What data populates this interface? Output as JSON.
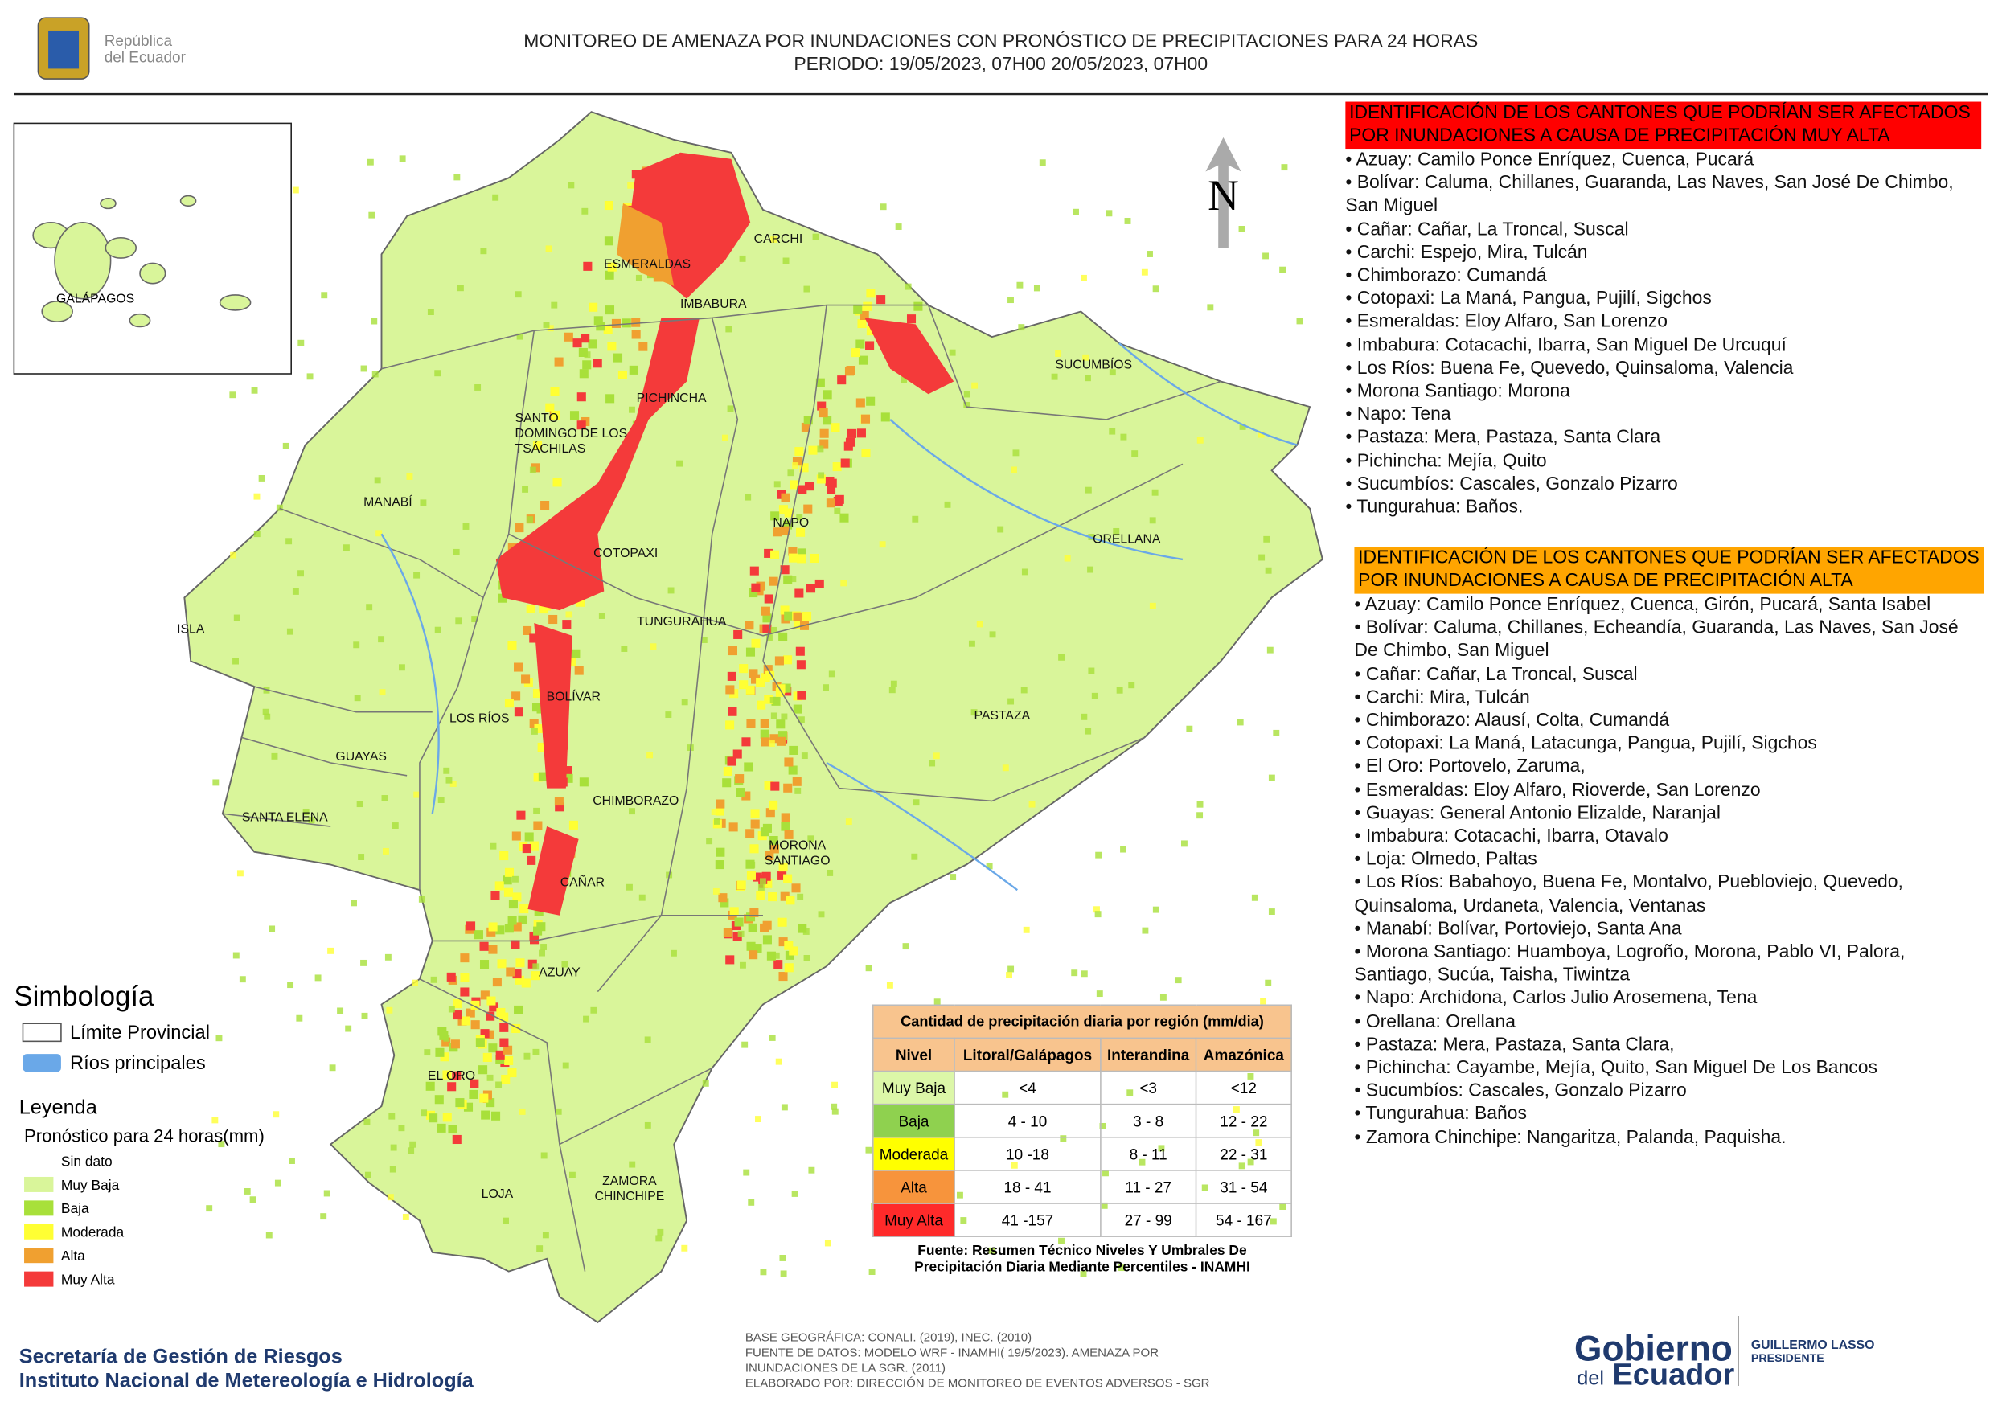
{
  "header": {
    "logo_text": [
      "República",
      "del Ecuador"
    ],
    "title": [
      "MONITOREO DE AMENAZA POR INUNDACIONES  CON PRONÓSTICO DE  PRECIPITACIONES PARA 24 HORAS",
      "PERIODO: 19/05/2023, 07H00 20/05/2023, 07H00"
    ]
  },
  "map": {
    "north": "N",
    "inset_label": "GALÁPAGOS",
    "labels": [
      [
        "CARCHI"
      ],
      [
        "ESMERALDAS"
      ],
      [
        "IMBABURA"
      ],
      [
        "SUCUMBÍOS"
      ],
      [
        "PICHINCHA"
      ],
      [
        "SANTO",
        "DOMINGO DE LOS",
        "TSÁCHILAS"
      ],
      [
        "MANABÍ"
      ],
      [
        "NAPO"
      ],
      [
        "ORELLANA"
      ],
      [
        "COTOPAXI"
      ],
      [
        "ISLA"
      ],
      [
        "TUNGURAHUA"
      ],
      [
        "BOLÍVAR"
      ],
      [
        "LOS RÍOS"
      ],
      [
        "PASTAZA"
      ],
      [
        "GUAYAS"
      ],
      [
        "CHIMBORAZO"
      ],
      [
        "SANTA ELENA"
      ],
      [
        "MORONA",
        "SANTIAGO"
      ],
      [
        "CAÑAR"
      ],
      [
        "AZUAY"
      ],
      [
        "EL ORO"
      ],
      [
        "ZAMORA",
        "CHINCHIPE"
      ],
      [
        "LOJA"
      ]
    ]
  },
  "very_high": {
    "heading": "IDENTIFICACIÓN DE LOS CANTONES QUE PODRÍAN SER AFECTADOS POR INUNDACIONES  A CAUSA DE PRECIPITACIÓN MUY ALTA",
    "items": [
      "• Azuay: Camilo Ponce Enríquez, Cuenca, Pucará",
      "• Bolívar: Caluma, Chillanes, Guaranda, Las Naves, San José De Chimbo, San Miguel",
      "• Cañar: Cañar, La Troncal, Suscal",
      "• Carchi: Espejo, Mira, Tulcán",
      "• Chimborazo: Cumandá",
      "• Cotopaxi: La Maná, Pangua, Pujilí, Sigchos",
      "• Esmeraldas: Eloy Alfaro, San Lorenzo",
      "• Imbabura: Cotacachi, Ibarra, San Miguel De Urcuquí",
      "• Los Ríos: Buena Fe, Quevedo, Quinsaloma, Valencia",
      "• Morona Santiago: Morona",
      "• Napo: Tena",
      "• Pastaza: Mera, Pastaza, Santa Clara",
      "• Pichincha: Mejía, Quito",
      "• Sucumbíos: Cascales, Gonzalo Pizarro",
      "• Tungurahua: Baños."
    ]
  },
  "high": {
    "heading": "IDENTIFICACIÓN DE LOS CANTONES QUE  PODRÍAN SER AFECTADOS POR INUNDACIONES  A CAUSA DE PRECIPITACIÓN ALTA",
    "items": [
      "• Azuay: Camilo Ponce Enríquez, Cuenca, Girón, Pucará, Santa Isabel",
      "• Bolívar: Caluma, Chillanes, Echeandía, Guaranda, Las Naves, San José De Chimbo, San Miguel",
      "• Cañar: Cañar, La Troncal, Suscal",
      "• Carchi: Mira, Tulcán",
      "• Chimborazo: Alausí, Colta, Cumandá",
      "• Cotopaxi: La Maná, Latacunga, Pangua, Pujilí, Sigchos",
      "• El Oro: Portovelo, Zaruma,",
      "• Esmeraldas: Eloy Alfaro, Rioverde, San Lorenzo",
      "• Guayas: General Antonio Elizalde, Naranjal",
      "• Imbabura: Cotacachi, Ibarra, Otavalo",
      "• Loja: Olmedo, Paltas",
      "• Los Ríos: Babahoyo, Buena Fe, Montalvo, Puebloviejo, Quevedo, Quinsaloma, Urdaneta, Valencia, Ventanas",
      "• Manabí: Bolívar, Portoviejo, Santa Ana",
      "• Morona Santiago: Huamboya, Logroño, Morona, Pablo VI, Palora, Santiago, Sucúa, Taisha, Tiwintza",
      "• Napo: Archidona, Carlos Julio Arosemena, Tena",
      "• Orellana: Orellana",
      "• Pastaza: Mera, Pastaza, Santa Clara,",
      "• Pichincha: Cayambe, Mejía, Quito, San Miguel De Los Bancos",
      "• Sucumbíos: Cascales, Gonzalo Pizarro",
      "• Tungurahua: Baños",
      "• Zamora Chinchipe: Nangaritza, Palanda, Paquisha."
    ]
  },
  "symbology": {
    "title": "Simbología",
    "items": [
      "Límite Provincial",
      "Ríos principales"
    ]
  },
  "legend": {
    "title": "Leyenda",
    "subtitle": "Pronóstico para 24 horas(mm)",
    "items": [
      {
        "label": "Sin dato",
        "color": "#ffffff"
      },
      {
        "label": "Muy Baja",
        "color": "#d9f59a"
      },
      {
        "label": "Baja",
        "color": "#a8e03a"
      },
      {
        "label": "Moderada",
        "color": "#ffff33"
      },
      {
        "label": "Alta",
        "color": "#f0a030"
      },
      {
        "label": "Muy Alta",
        "color": "#f43a3a"
      }
    ]
  },
  "table": {
    "title": "Cantidad de precipitación diaria por región (mm/dia)",
    "headers": [
      "Nivel",
      "Litoral/Galápagos",
      "Interandina",
      "Amazónica"
    ],
    "rows": [
      [
        "Muy Baja",
        "<4",
        "<3",
        "<12"
      ],
      [
        "Baja",
        "4 - 10",
        "3 - 8",
        "12 - 22"
      ],
      [
        "Moderada",
        "10 -18",
        "8 - 11",
        "22 - 31"
      ],
      [
        "Alta",
        "18 - 41",
        "11 - 27",
        "31 - 54"
      ],
      [
        "Muy Alta",
        "41 -157",
        "27 - 99",
        "54 - 167"
      ]
    ],
    "row_colors": [
      "#dcf7a8",
      "#8fd14f",
      "#ffff00",
      "#f7943c",
      "#ff2a2a"
    ],
    "source": [
      "Fuente: Resumen Técnico Niveles Y Umbrales De",
      "Precipitación Diaria Mediante Percentiles - INAMHI"
    ]
  },
  "footer": {
    "left": [
      "Secretaría de Gestión de Riesgos",
      "Instituto Nacional de Metereología e Hidrología"
    ],
    "center": [
      "BASE GEOGRÁFICA: CONALI. (2019), INEC. (2010)",
      "FUENTE DE DATOS: MODELO WRF - INAMHI( 19/5/2023).  AMENAZA POR",
      "INUNDACIONES DE LA SGR. (2011)",
      "ELABORADO POR: DIRECCIÓN DE MONITOREO DE EVENTOS ADVERSOS - SGR"
    ],
    "gov": [
      "Gobierno",
      "del",
      "Ecuador"
    ],
    "president": [
      "GUILLERMO LASSO",
      "PRESIDENTE"
    ]
  }
}
